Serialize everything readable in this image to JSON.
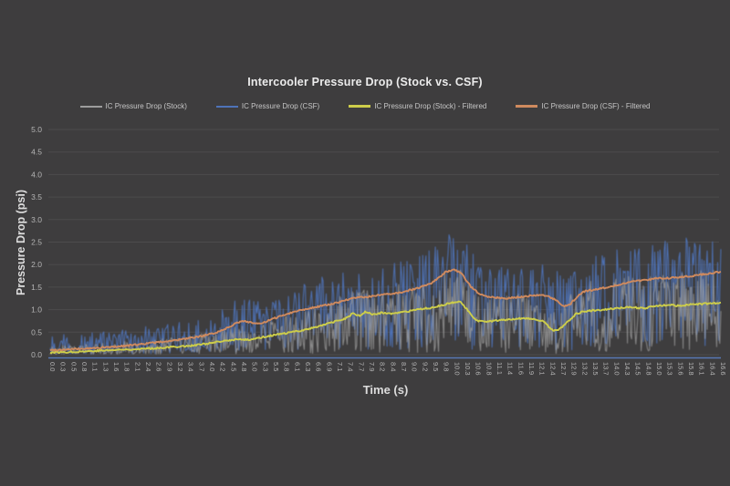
{
  "chart_data": {
    "type": "line",
    "title": "Intercooler Pressure Drop (Stock vs. CSF)",
    "xlabel": "Time (s)",
    "ylabel": "Pressure Drop (psi)",
    "xlim": [
      0,
      16.6
    ],
    "ylim": [
      0,
      5
    ],
    "grid": "horizontal",
    "legend_position": "top",
    "background_color": "#3e3d3e",
    "gridline_color": "#4c4b4c",
    "axis_line_color": "#5878b4",
    "tick_text_color": "#b5b5b5",
    "title_color": "#ececec",
    "y_tick_labels": [
      "5.0",
      "4.5",
      "4.0",
      "3.5",
      "3.0",
      "2.5",
      "2.0",
      "1.5",
      "1.0",
      "0.5",
      "0.0"
    ],
    "x_tick_labels": [
      "0.0",
      "0.3",
      "0.5",
      "0.8",
      "1.1",
      "1.3",
      "1.6",
      "1.8",
      "2.1",
      "2.4",
      "2.6",
      "2.9",
      "3.2",
      "3.4",
      "3.7",
      "4.0",
      "4.2",
      "4.5",
      "4.8",
      "5.0",
      "5.3",
      "5.5",
      "5.8",
      "6.1",
      "6.3",
      "6.6",
      "6.9",
      "7.1",
      "7.4",
      "7.7",
      "7.9",
      "8.2",
      "8.4",
      "8.7",
      "9.0",
      "9.2",
      "9.5",
      "9.8",
      "10.0",
      "10.3",
      "10.6",
      "10.8",
      "11.1",
      "11.4",
      "11.6",
      "11.9",
      "12.1",
      "12.4",
      "12.7",
      "12.9",
      "13.2",
      "13.5",
      "13.7",
      "14.0",
      "14.3",
      "14.5",
      "14.8",
      "15.0",
      "15.3",
      "15.6",
      "15.8",
      "16.1",
      "16.4",
      "16.6"
    ],
    "series": [
      {
        "name": "IC Pressure Drop (Stock)",
        "color": "#9d9d9d",
        "style": "raw-noisy",
        "opacity": 0.8,
        "mean_source": 2,
        "noise": {
          "seed": 911,
          "up_base": 0.12,
          "up_scale": 0.55,
          "down_scale": 0.95,
          "shape": 0.8
        }
      },
      {
        "name": "IC Pressure Drop (CSF)",
        "color": "#4e73b8",
        "style": "raw-noisy",
        "opacity": 0.95,
        "mean_source": 3,
        "noise": {
          "seed": 4242,
          "up_base": 0.3,
          "up_scale": 0.32,
          "down_scale": 0.92,
          "shape": 0.8
        }
      },
      {
        "name": "IC Pressure Drop (Stock) - Filtered",
        "color": "#cdcd4a",
        "style": "filtered",
        "opacity": 1,
        "noise": {
          "seed": 77,
          "jitter": 0.018
        },
        "points": [
          [
            0,
            0.05
          ],
          [
            0.5,
            0.06
          ],
          [
            1,
            0.08
          ],
          [
            1.5,
            0.1
          ],
          [
            2,
            0.12
          ],
          [
            2.5,
            0.14
          ],
          [
            3,
            0.17
          ],
          [
            3.5,
            0.2
          ],
          [
            4,
            0.26
          ],
          [
            4.3,
            0.3
          ],
          [
            4.6,
            0.34
          ],
          [
            4.9,
            0.33
          ],
          [
            5.2,
            0.38
          ],
          [
            5.5,
            0.43
          ],
          [
            5.8,
            0.47
          ],
          [
            6.1,
            0.52
          ],
          [
            6.4,
            0.57
          ],
          [
            6.7,
            0.65
          ],
          [
            7,
            0.72
          ],
          [
            7.3,
            0.8
          ],
          [
            7.5,
            0.92
          ],
          [
            7.65,
            0.86
          ],
          [
            7.8,
            0.95
          ],
          [
            8,
            0.89
          ],
          [
            8.2,
            0.93
          ],
          [
            8.5,
            0.91
          ],
          [
            8.8,
            0.95
          ],
          [
            9.1,
            1
          ],
          [
            9.4,
            1.04
          ],
          [
            9.7,
            1.1
          ],
          [
            10,
            1.16
          ],
          [
            10.15,
            1.18
          ],
          [
            10.35,
            0.97
          ],
          [
            10.55,
            0.76
          ],
          [
            10.8,
            0.73
          ],
          [
            11.1,
            0.76
          ],
          [
            11.4,
            0.79
          ],
          [
            11.7,
            0.81
          ],
          [
            12,
            0.78
          ],
          [
            12.2,
            0.74
          ],
          [
            12.45,
            0.53
          ],
          [
            12.6,
            0.56
          ],
          [
            12.8,
            0.72
          ],
          [
            13,
            0.9
          ],
          [
            13.2,
            0.96
          ],
          [
            13.5,
            0.99
          ],
          [
            13.8,
            1.01
          ],
          [
            14.1,
            1.04
          ],
          [
            14.4,
            1.05
          ],
          [
            14.7,
            1.03
          ],
          [
            15,
            1.08
          ],
          [
            15.3,
            1.11
          ],
          [
            15.6,
            1.08
          ],
          [
            15.9,
            1.12
          ],
          [
            16.2,
            1.13
          ],
          [
            16.6,
            1.15
          ]
        ]
      },
      {
        "name": "IC Pressure Drop (CSF) - Filtered",
        "color": "#cf8a5e",
        "style": "filtered",
        "opacity": 1,
        "noise": {
          "seed": 99,
          "jitter": 0.018
        },
        "points": [
          [
            0,
            0.1
          ],
          [
            0.5,
            0.12
          ],
          [
            1,
            0.14
          ],
          [
            1.5,
            0.17
          ],
          [
            2,
            0.21
          ],
          [
            2.5,
            0.26
          ],
          [
            3,
            0.31
          ],
          [
            3.5,
            0.37
          ],
          [
            4,
            0.46
          ],
          [
            4.3,
            0.56
          ],
          [
            4.6,
            0.7
          ],
          [
            4.8,
            0.75
          ],
          [
            5,
            0.71
          ],
          [
            5.2,
            0.68
          ],
          [
            5.5,
            0.79
          ],
          [
            5.8,
            0.89
          ],
          [
            6.1,
            0.97
          ],
          [
            6.4,
            1.03
          ],
          [
            6.7,
            1.08
          ],
          [
            7,
            1.13
          ],
          [
            7.3,
            1.21
          ],
          [
            7.6,
            1.27
          ],
          [
            7.9,
            1.29
          ],
          [
            8.2,
            1.33
          ],
          [
            8.5,
            1.35
          ],
          [
            8.8,
            1.41
          ],
          [
            9.1,
            1.48
          ],
          [
            9.4,
            1.57
          ],
          [
            9.6,
            1.69
          ],
          [
            9.8,
            1.84
          ],
          [
            10,
            1.9
          ],
          [
            10.2,
            1.78
          ],
          [
            10.4,
            1.52
          ],
          [
            10.6,
            1.37
          ],
          [
            10.8,
            1.3
          ],
          [
            11,
            1.27
          ],
          [
            11.3,
            1.25
          ],
          [
            11.6,
            1.28
          ],
          [
            11.9,
            1.31
          ],
          [
            12.1,
            1.33
          ],
          [
            12.3,
            1.3
          ],
          [
            12.5,
            1.22
          ],
          [
            12.7,
            1.07
          ],
          [
            12.85,
            1.1
          ],
          [
            13,
            1.25
          ],
          [
            13.2,
            1.4
          ],
          [
            13.5,
            1.45
          ],
          [
            13.8,
            1.5
          ],
          [
            14.1,
            1.56
          ],
          [
            14.4,
            1.62
          ],
          [
            14.7,
            1.66
          ],
          [
            15,
            1.69
          ],
          [
            15.3,
            1.7
          ],
          [
            15.6,
            1.73
          ],
          [
            15.9,
            1.75
          ],
          [
            16.2,
            1.79
          ],
          [
            16.6,
            1.84
          ]
        ]
      }
    ]
  }
}
